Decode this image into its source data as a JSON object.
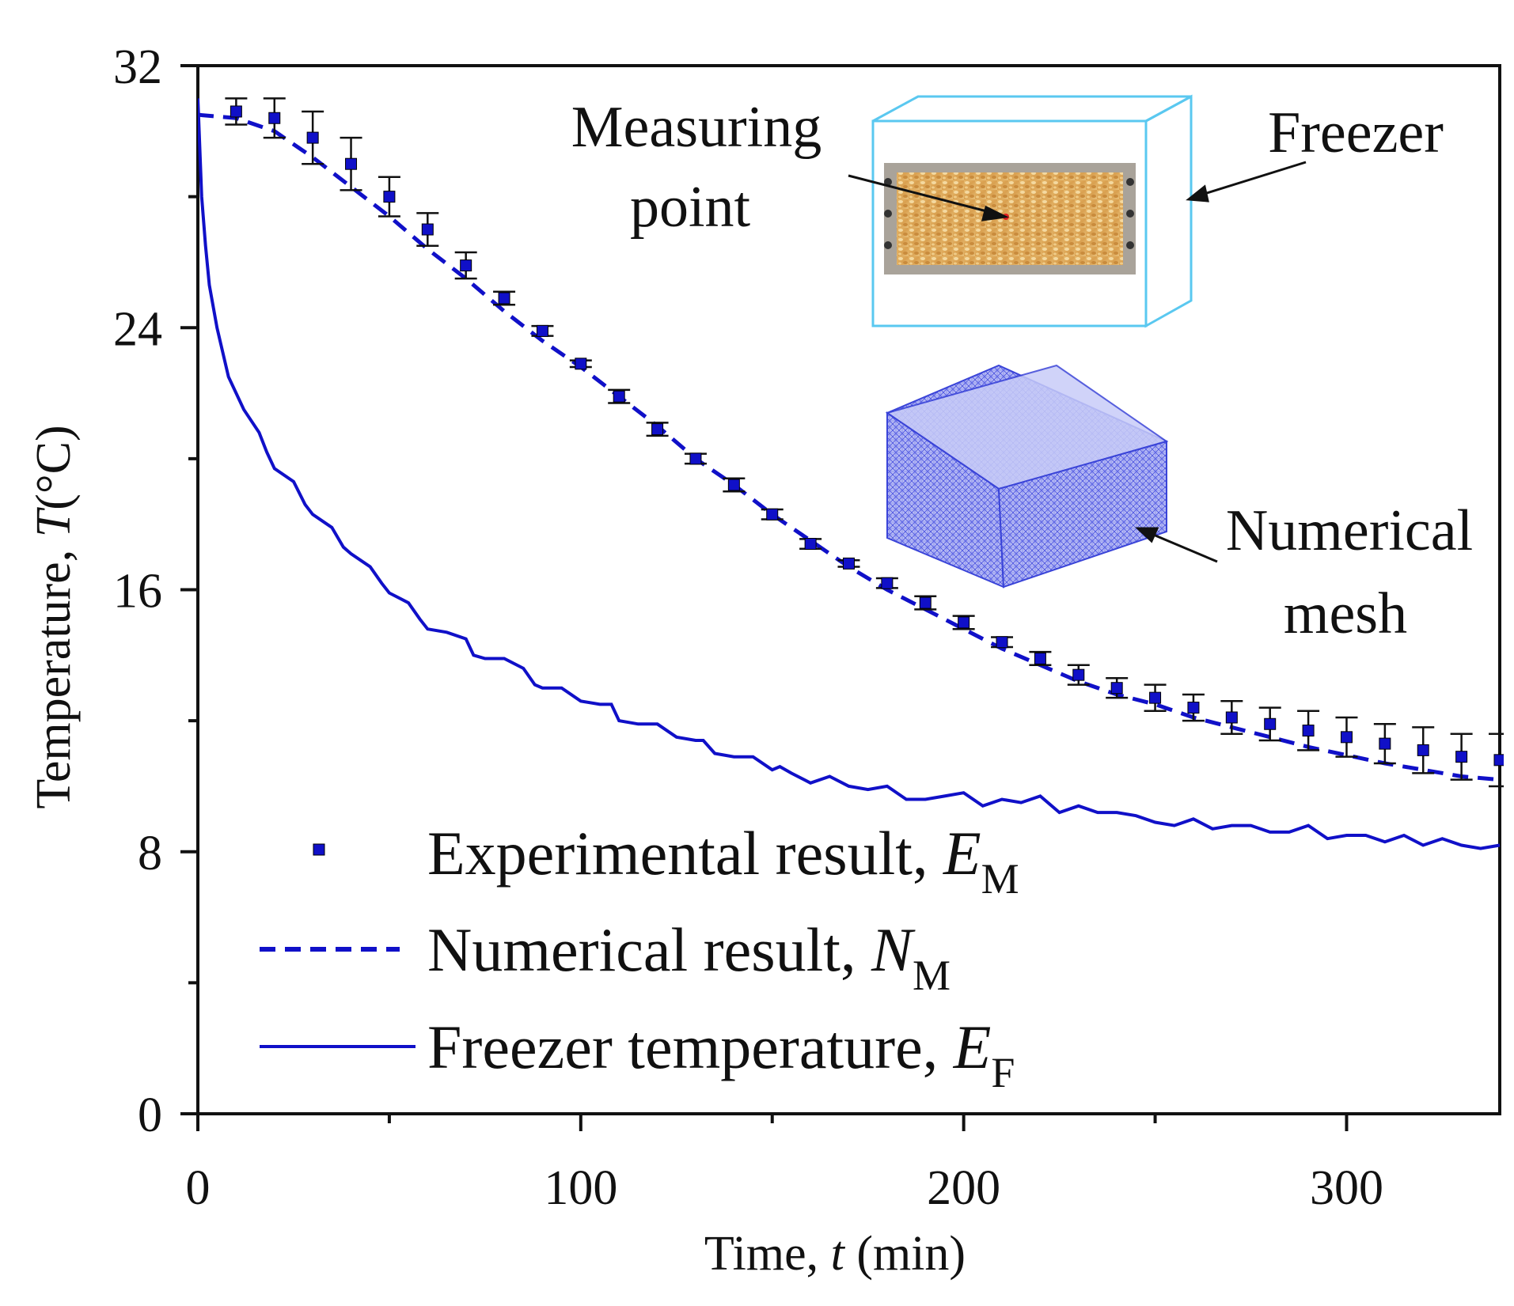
{
  "chart_data": {
    "type": "line",
    "title": "",
    "xlabel": {
      "prefix": "Time,  ",
      "var": "t",
      "suffix": " (min)"
    },
    "ylabel": {
      "prefix": "Temperature,  ",
      "var": "T",
      "suffix": "(°C)"
    },
    "xlim": [
      0,
      340
    ],
    "ylim": [
      0,
      32
    ],
    "xticks": [
      0,
      100,
      200,
      300
    ],
    "yticks": [
      0,
      8,
      16,
      24,
      32
    ],
    "xtick_labels": [
      "0",
      "100",
      "200",
      "300"
    ],
    "ytick_labels": [
      "0",
      "8",
      "16",
      "24",
      "32"
    ],
    "grid": false,
    "legend_position": "bottom-left",
    "series": [
      {
        "name": "Experimental result, E_M",
        "legend": {
          "text": "Experimental result, ",
          "var": "E",
          "sub": "M"
        },
        "style": "markers-with-errorbars",
        "x": [
          10,
          20,
          30,
          40,
          50,
          60,
          70,
          80,
          90,
          100,
          110,
          120,
          130,
          140,
          150,
          160,
          170,
          180,
          190,
          200,
          210,
          220,
          230,
          240,
          250,
          260,
          270,
          280,
          290,
          300,
          310,
          320,
          330,
          340
        ],
        "y": [
          30.6,
          30.4,
          29.8,
          29.0,
          28.0,
          27.0,
          25.9,
          24.9,
          23.9,
          22.9,
          21.9,
          20.9,
          20.0,
          19.2,
          18.3,
          17.4,
          16.8,
          16.2,
          15.6,
          15.0,
          14.4,
          13.9,
          13.4,
          13.0,
          12.7,
          12.4,
          12.1,
          11.9,
          11.7,
          11.5,
          11.3,
          11.1,
          10.9,
          10.8
        ],
        "err": [
          0.4,
          0.6,
          0.8,
          0.8,
          0.6,
          0.5,
          0.4,
          0.2,
          0.15,
          0.1,
          0.2,
          0.2,
          0.15,
          0.2,
          0.15,
          0.15,
          0.1,
          0.15,
          0.2,
          0.2,
          0.15,
          0.2,
          0.3,
          0.3,
          0.4,
          0.4,
          0.5,
          0.5,
          0.6,
          0.6,
          0.6,
          0.7,
          0.7,
          0.8
        ],
        "color": "#1010c8"
      },
      {
        "name": "Numerical result, N_M",
        "legend": {
          "text": "Numerical result, ",
          "var": "N",
          "sub": "M"
        },
        "style": "dashed",
        "x": [
          0,
          10,
          20,
          30,
          40,
          50,
          60,
          70,
          80,
          90,
          100,
          110,
          120,
          130,
          140,
          150,
          160,
          170,
          180,
          190,
          200,
          210,
          220,
          230,
          240,
          250,
          260,
          270,
          280,
          290,
          300,
          310,
          320,
          330,
          340
        ],
        "y": [
          30.5,
          30.4,
          30.0,
          29.2,
          28.3,
          27.4,
          26.4,
          25.5,
          24.5,
          23.6,
          22.8,
          21.9,
          21.0,
          20.0,
          19.2,
          18.3,
          17.5,
          16.7,
          16.0,
          15.4,
          14.8,
          14.2,
          13.7,
          13.2,
          12.8,
          12.5,
          12.1,
          11.8,
          11.5,
          11.2,
          10.95,
          10.7,
          10.5,
          10.3,
          10.2
        ],
        "color": "#1010c8"
      },
      {
        "name": "Freezer temperature, E_F",
        "legend": {
          "text": "Freezer temperature, ",
          "var": "E",
          "sub": "F"
        },
        "style": "solid",
        "x": [
          0,
          1,
          2,
          3,
          5,
          8,
          12,
          16,
          18,
          20,
          25,
          28,
          30,
          35,
          38,
          40,
          45,
          48,
          50,
          55,
          58,
          60,
          65,
          70,
          72,
          75,
          80,
          85,
          88,
          90,
          95,
          100,
          105,
          108,
          110,
          115,
          120,
          125,
          130,
          132,
          135,
          140,
          145,
          150,
          152,
          155,
          160,
          165,
          170,
          175,
          180,
          185,
          190,
          195,
          200,
          205,
          210,
          215,
          220,
          225,
          230,
          235,
          240,
          245,
          250,
          255,
          260,
          265,
          270,
          275,
          280,
          285,
          290,
          295,
          300,
          305,
          310,
          315,
          320,
          325,
          330,
          335,
          340
        ],
        "y": [
          31.0,
          28.0,
          26.5,
          25.3,
          24.0,
          22.5,
          21.5,
          20.8,
          20.2,
          19.7,
          19.3,
          18.6,
          18.3,
          17.9,
          17.3,
          17.1,
          16.7,
          16.2,
          15.9,
          15.6,
          15.1,
          14.8,
          14.7,
          14.5,
          14.0,
          13.9,
          13.9,
          13.6,
          13.1,
          13.0,
          13.0,
          12.6,
          12.5,
          12.5,
          12.0,
          11.9,
          11.9,
          11.5,
          11.4,
          11.4,
          11.0,
          10.9,
          10.9,
          10.5,
          10.6,
          10.4,
          10.1,
          10.3,
          10.0,
          9.9,
          10.0,
          9.6,
          9.6,
          9.7,
          9.8,
          9.4,
          9.6,
          9.5,
          9.7,
          9.2,
          9.4,
          9.2,
          9.2,
          9.1,
          8.9,
          8.8,
          9.0,
          8.7,
          8.8,
          8.8,
          8.6,
          8.6,
          8.8,
          8.4,
          8.5,
          8.5,
          8.3,
          8.5,
          8.2,
          8.4,
          8.2,
          8.1,
          8.2
        ],
        "color": "#1010c8"
      }
    ],
    "annotations": {
      "measuring_point": [
        "Measuring",
        "point"
      ],
      "freezer": "Freezer",
      "numerical_mesh": [
        "Numerical",
        "mesh"
      ]
    }
  }
}
